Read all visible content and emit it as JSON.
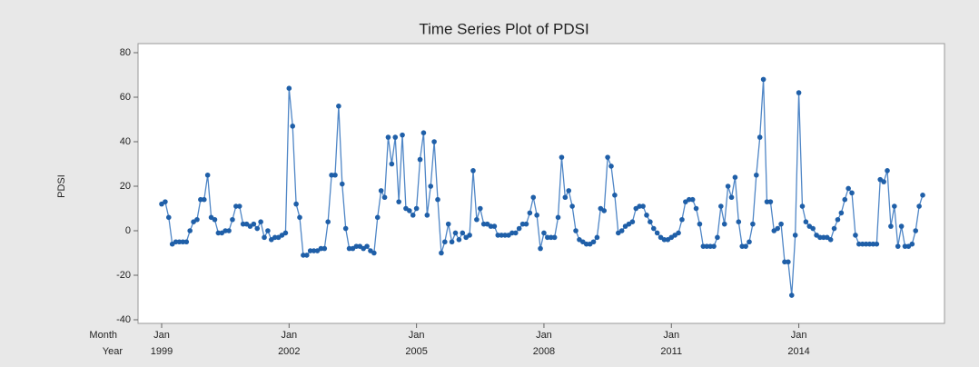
{
  "chart_data": {
    "type": "line",
    "title": "Time Series Plot of PDSI",
    "y_label": "PDSI",
    "x_row_labels": {
      "month": "Month",
      "year": "Year"
    },
    "xticks": [
      {
        "index": 0,
        "month": "Jan",
        "year": "1999"
      },
      {
        "index": 36,
        "month": "Jan",
        "year": "2002"
      },
      {
        "index": 72,
        "month": "Jan",
        "year": "2005"
      },
      {
        "index": 108,
        "month": "Jan",
        "year": "2008"
      },
      {
        "index": 144,
        "month": "Jan",
        "year": "2011"
      },
      {
        "index": 180,
        "month": "Jan",
        "year": "2014"
      }
    ],
    "ylim": [
      -40,
      80
    ],
    "yticks": [
      -40,
      -20,
      0,
      20,
      40,
      60,
      80
    ],
    "line_color": "#4f86c6",
    "marker_color": "#1f5fa8",
    "values": [
      12,
      13,
      6,
      -6,
      -5,
      -5,
      -5,
      -5,
      0,
      4,
      5,
      14,
      14,
      25,
      6,
      5,
      -1,
      -1,
      0,
      0,
      5,
      11,
      11,
      3,
      3,
      2,
      3,
      1,
      4,
      -3,
      0,
      -4,
      -3,
      -3,
      -2,
      -1,
      64,
      47,
      12,
      6,
      -11,
      -11,
      -9,
      -9,
      -9,
      -8,
      -8,
      4,
      25,
      25,
      56,
      21,
      1,
      -8,
      -8,
      -7,
      -7,
      -8,
      -7,
      -9,
      -10,
      6,
      18,
      15,
      42,
      30,
      42,
      13,
      43,
      10,
      9,
      7,
      10,
      32,
      44,
      7,
      20,
      40,
      14,
      -10,
      -5,
      3,
      -5,
      -1,
      -4,
      -1,
      -3,
      -2,
      27,
      5,
      10,
      3,
      3,
      2,
      2,
      -2,
      -2,
      -2,
      -2,
      -1,
      -1,
      1,
      3,
      3,
      8,
      15,
      7,
      -8,
      -1,
      -3,
      -3,
      -3,
      6,
      33,
      15,
      18,
      11,
      0,
      -4,
      -5,
      -6,
      -6,
      -5,
      -3,
      10,
      9,
      33,
      29,
      16,
      -1,
      0,
      2,
      3,
      4,
      10,
      11,
      11,
      7,
      4,
      1,
      -1,
      -3,
      -4,
      -4,
      -3,
      -2,
      -1,
      5,
      13,
      14,
      14,
      10,
      3,
      -7,
      -7,
      -7,
      -7,
      -3,
      11,
      3,
      20,
      15,
      24,
      4,
      -7,
      -7,
      -5,
      3,
      25,
      42,
      68,
      13,
      13,
      0,
      1,
      3,
      -14,
      -14,
      -29,
      -2,
      62,
      11,
      4,
      2,
      1,
      -2,
      -3,
      -3,
      -3,
      -4,
      1,
      5,
      8,
      14,
      19,
      17,
      -2,
      -6,
      -6,
      -6,
      -6,
      -6,
      -6,
      23,
      22,
      27,
      2,
      11,
      -7,
      2,
      -7,
      -7,
      -6,
      0,
      11,
      16
    ]
  }
}
